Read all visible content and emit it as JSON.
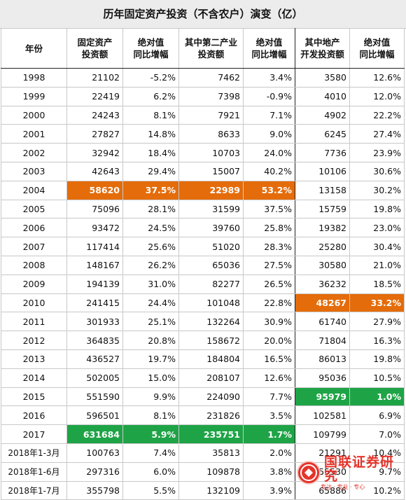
{
  "title": "历年固定资产投资（不含农户）演变（亿）",
  "headers": [
    {
      "l1": "年份",
      "l2": ""
    },
    {
      "l1": "固定资产",
      "l2": "投资额"
    },
    {
      "l1": "绝对值",
      "l2": "同比增幅"
    },
    {
      "l1": "其中第二产业",
      "l2": "投资额"
    },
    {
      "l1": "绝对值",
      "l2": "同比增幅"
    },
    {
      "l1": "其中地产",
      "l2": "开发投资额"
    },
    {
      "l1": "绝对值",
      "l2": "同比增幅"
    }
  ],
  "rows": [
    {
      "year": "1998",
      "fai": "21102",
      "fai_yoy": "-5.2%",
      "sec": "7462",
      "sec_yoy": "3.4%",
      "re": "3580",
      "re_yoy": "12.6%"
    },
    {
      "year": "1999",
      "fai": "22419",
      "fai_yoy": "6.2%",
      "sec": "7398",
      "sec_yoy": "-0.9%",
      "re": "4010",
      "re_yoy": "12.0%"
    },
    {
      "year": "2000",
      "fai": "24243",
      "fai_yoy": "8.1%",
      "sec": "7921",
      "sec_yoy": "7.1%",
      "re": "4902",
      "re_yoy": "22.2%"
    },
    {
      "year": "2001",
      "fai": "27827",
      "fai_yoy": "14.8%",
      "sec": "8633",
      "sec_yoy": "9.0%",
      "re": "6245",
      "re_yoy": "27.4%"
    },
    {
      "year": "2002",
      "fai": "32942",
      "fai_yoy": "18.4%",
      "sec": "10703",
      "sec_yoy": "24.0%",
      "re": "7736",
      "re_yoy": "23.9%"
    },
    {
      "year": "2003",
      "fai": "42643",
      "fai_yoy": "29.4%",
      "sec": "15007",
      "sec_yoy": "40.2%",
      "re": "10106",
      "re_yoy": "30.6%"
    },
    {
      "year": "2004",
      "fai": "58620",
      "fai_yoy": "37.5%",
      "sec": "22989",
      "sec_yoy": "53.2%",
      "re": "13158",
      "re_yoy": "30.2%"
    },
    {
      "year": "2005",
      "fai": "75096",
      "fai_yoy": "28.1%",
      "sec": "31599",
      "sec_yoy": "37.5%",
      "re": "15759",
      "re_yoy": "19.8%"
    },
    {
      "year": "2006",
      "fai": "93472",
      "fai_yoy": "24.5%",
      "sec": "39760",
      "sec_yoy": "25.8%",
      "re": "19382",
      "re_yoy": "23.0%"
    },
    {
      "year": "2007",
      "fai": "117414",
      "fai_yoy": "25.6%",
      "sec": "51020",
      "sec_yoy": "28.3%",
      "re": "25280",
      "re_yoy": "30.4%"
    },
    {
      "year": "2008",
      "fai": "148167",
      "fai_yoy": "26.2%",
      "sec": "65036",
      "sec_yoy": "27.5%",
      "re": "30580",
      "re_yoy": "21.0%"
    },
    {
      "year": "2009",
      "fai": "194139",
      "fai_yoy": "31.0%",
      "sec": "82277",
      "sec_yoy": "26.5%",
      "re": "36232",
      "re_yoy": "18.5%"
    },
    {
      "year": "2010",
      "fai": "241415",
      "fai_yoy": "24.4%",
      "sec": "101048",
      "sec_yoy": "22.8%",
      "re": "48267",
      "re_yoy": "33.2%"
    },
    {
      "year": "2011",
      "fai": "301933",
      "fai_yoy": "25.1%",
      "sec": "132264",
      "sec_yoy": "30.9%",
      "re": "61740",
      "re_yoy": "27.9%"
    },
    {
      "year": "2012",
      "fai": "364835",
      "fai_yoy": "20.8%",
      "sec": "158672",
      "sec_yoy": "20.0%",
      "re": "71804",
      "re_yoy": "16.3%"
    },
    {
      "year": "2013",
      "fai": "436527",
      "fai_yoy": "19.7%",
      "sec": "184804",
      "sec_yoy": "16.5%",
      "re": "86013",
      "re_yoy": "19.8%"
    },
    {
      "year": "2014",
      "fai": "502005",
      "fai_yoy": "15.0%",
      "sec": "208107",
      "sec_yoy": "12.6%",
      "re": "95036",
      "re_yoy": "10.5%"
    },
    {
      "year": "2015",
      "fai": "551590",
      "fai_yoy": "9.9%",
      "sec": "224090",
      "sec_yoy": "7.7%",
      "re": "95979",
      "re_yoy": "1.0%"
    },
    {
      "year": "2016",
      "fai": "596501",
      "fai_yoy": "8.1%",
      "sec": "231826",
      "sec_yoy": "3.5%",
      "re": "102581",
      "re_yoy": "6.9%"
    },
    {
      "year": "2017",
      "fai": "631684",
      "fai_yoy": "5.9%",
      "sec": "235751",
      "sec_yoy": "1.7%",
      "re": "109799",
      "re_yoy": "7.0%"
    },
    {
      "year": "2018年1-3月",
      "fai": "100763",
      "fai_yoy": "7.4%",
      "sec": "35813",
      "sec_yoy": "2.0%",
      "re": "21291",
      "re_yoy": "10.4%"
    },
    {
      "year": "2018年1-6月",
      "fai": "297316",
      "fai_yoy": "6.0%",
      "sec": "109878",
      "sec_yoy": "3.8%",
      "re": "55530",
      "re_yoy": "9.7%"
    },
    {
      "year": "2018年1-7月",
      "fai": "355798",
      "fai_yoy": "5.5%",
      "sec": "132109",
      "sec_yoy": "3.9%",
      "re": "65886",
      "re_yoy": "10.2%"
    }
  ],
  "highlights": {
    "2004": {
      "fai": "orange",
      "fai_yoy": "orange",
      "sec": "orange",
      "sec_yoy": "orange"
    },
    "2010": {
      "re": "orange",
      "re_yoy": "orange"
    },
    "2015": {
      "re": "green",
      "re_yoy": "green"
    },
    "2017": {
      "fai": "green",
      "fai_yoy": "green",
      "sec": "green",
      "sec_yoy": "green"
    }
  },
  "colors": {
    "orange": "#e46c0a",
    "green": "#1ea446",
    "logo_red": "#e2231a"
  },
  "watermark": {
    "name": "国联证券研究",
    "sub": "专注 · 专业 · 专心"
  }
}
